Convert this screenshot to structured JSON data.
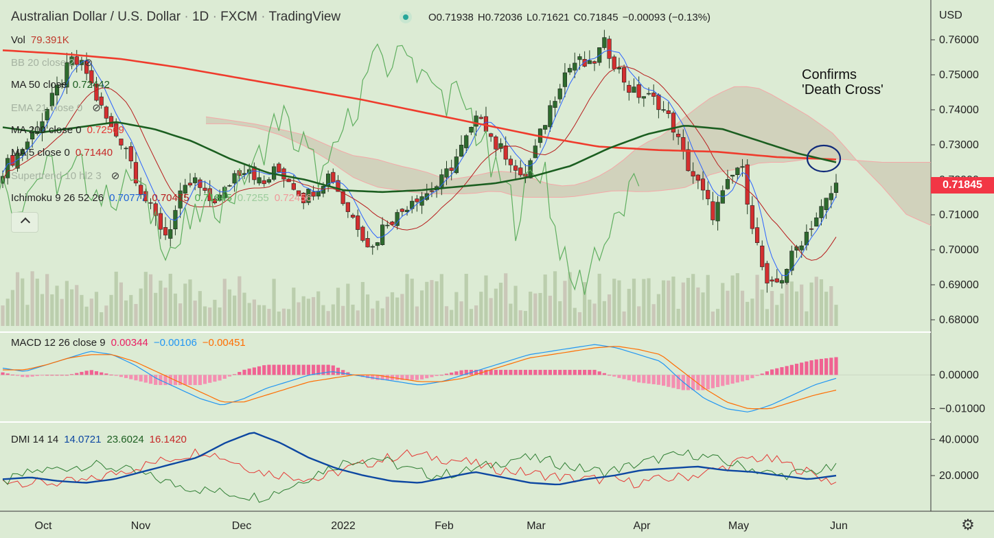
{
  "header": {
    "symbol": "Australian Dollar / U.S. Dollar",
    "interval": "1D",
    "exchange": "FXCM",
    "source": "TradingView",
    "ohlc": [
      {
        "k": "O",
        "v": "0.71938"
      },
      {
        "k": "H",
        "v": "0.72036"
      },
      {
        "k": "L",
        "v": "0.71621"
      },
      {
        "k": "C",
        "v": "0.71845"
      }
    ],
    "change": "−0.00093 (−0.13%)",
    "status_color": "#26a69a"
  },
  "legend": [
    {
      "name": "Vol",
      "values": [
        {
          "v": "79.391K",
          "color": "#c0392b"
        }
      ],
      "faded": false,
      "hidden_icon": false
    },
    {
      "name": "BB 20 close 2",
      "values": [],
      "faded": true,
      "hidden_icon": true
    },
    {
      "name": "MA 50 close",
      "values": [
        {
          "v": "0.72442",
          "color": "#1b5e20"
        }
      ],
      "faded": false,
      "hidden_icon": false
    },
    {
      "name": "EMA 21 close 0",
      "values": [],
      "faded": true,
      "hidden_icon": true
    },
    {
      "name": "MA 200 close 0",
      "values": [
        {
          "v": "0.72569",
          "color": "#e53935"
        }
      ],
      "faded": false,
      "hidden_icon": false
    },
    {
      "name": "MA 5 close 0",
      "values": [
        {
          "v": "0.71440",
          "color": "#c62828"
        }
      ],
      "faded": false,
      "hidden_icon": false
    },
    {
      "name": "Supertrend 10 hl2 3",
      "values": [],
      "faded": true,
      "hidden_icon": true
    },
    {
      "name": "Ichimoku 9 26 52 26",
      "values": [
        {
          "v": "0.70777",
          "color": "#1e63d6"
        },
        {
          "v": "0.70475",
          "color": "#b71c1c"
        },
        {
          "v": "0.71845",
          "color": "#4caf50"
        },
        {
          "v": "0.7255",
          "color": "#9ccc9c"
        },
        {
          "v": "0.72456",
          "color": "#ef9a9a"
        }
      ],
      "faded": false,
      "hidden_icon": false
    }
  ],
  "annotation": {
    "line1": "Confirms",
    "line2": "'Death Cross'"
  },
  "price_axis": {
    "currency": "USD",
    "ticks": [
      "0.76000",
      "0.75000",
      "0.74000",
      "0.73000",
      "0.72000",
      "0.71000",
      "0.70000",
      "0.69000",
      "0.68000"
    ],
    "last_price": "0.71845",
    "last_price_color": "#f23645"
  },
  "macd": {
    "title": "MACD 12 26 close 9",
    "values": [
      {
        "v": "0.00344",
        "color": "#e91e63"
      },
      {
        "v": "−0.00106",
        "color": "#2196f3"
      },
      {
        "v": "−0.00451",
        "color": "#ff6d00"
      }
    ],
    "ticks": [
      "0.00000",
      "−0.01000"
    ]
  },
  "dmi": {
    "title": "DMI 14 14",
    "values": [
      {
        "v": "14.0721",
        "color": "#0d47a1"
      },
      {
        "v": "23.6024",
        "color": "#1b5e20"
      },
      {
        "v": "16.1420",
        "color": "#c62828"
      }
    ],
    "ticks": [
      "40.0000",
      "20.0000"
    ]
  },
  "time_axis": {
    "labels": [
      "Oct",
      "Nov",
      "Dec",
      "2022",
      "Feb",
      "Mar",
      "Apr",
      "May",
      "Jun"
    ]
  },
  "chart_data": {
    "type": "candlestick",
    "title": "Australian Dollar / U.S. Dollar · 1D · FXCM",
    "ylim": [
      0.678,
      0.764
    ],
    "x_labels": [
      "Oct",
      "Nov",
      "Dec",
      "2022",
      "Feb",
      "Mar",
      "Apr",
      "May",
      "Jun"
    ],
    "close_path": [
      0.723,
      0.727,
      0.732,
      0.738,
      0.746,
      0.754,
      0.752,
      0.742,
      0.734,
      0.73,
      0.718,
      0.71,
      0.704,
      0.715,
      0.72,
      0.714,
      0.715,
      0.722,
      0.724,
      0.718,
      0.723,
      0.72,
      0.715,
      0.718,
      0.722,
      0.713,
      0.707,
      0.7,
      0.708,
      0.71,
      0.715,
      0.716,
      0.719,
      0.725,
      0.732,
      0.739,
      0.73,
      0.727,
      0.719,
      0.729,
      0.74,
      0.75,
      0.754,
      0.752,
      0.759,
      0.752,
      0.745,
      0.744,
      0.742,
      0.736,
      0.725,
      0.718,
      0.71,
      0.718,
      0.725,
      0.705,
      0.688,
      0.692,
      0.7,
      0.706,
      0.712,
      0.7184
    ],
    "ma200": {
      "name": "MA 200 close 0",
      "value": 0.72569,
      "path": [
        0.757,
        0.756,
        0.7545,
        0.752,
        0.749,
        0.746,
        0.743,
        0.7395,
        0.736,
        0.7325,
        0.7295,
        0.7285,
        0.728,
        0.7265,
        0.7258
      ]
    },
    "ma50": {
      "name": "MA 50 close",
      "value": 0.72442,
      "path": [
        0.735,
        0.7335,
        0.735,
        0.7365,
        0.7345,
        0.731,
        0.726,
        0.722,
        0.72,
        0.717,
        0.7165,
        0.717,
        0.718,
        0.719,
        0.721,
        0.724,
        0.729,
        0.733,
        0.7355,
        0.7345,
        0.731,
        0.7275,
        0.725
      ]
    },
    "death_cross": "MA 50 crosses below MA 200",
    "volume_last": "79.391K",
    "macd": {
      "macd": -0.00106,
      "signal": -0.00451,
      "hist": 0.00344,
      "ylim": [
        -0.0115,
        0.009
      ]
    },
    "dmi": {
      "adx": 14.0721,
      "plus_di": 23.6024,
      "minus_di": 16.142,
      "ylim": [
        5,
        45
      ]
    }
  }
}
